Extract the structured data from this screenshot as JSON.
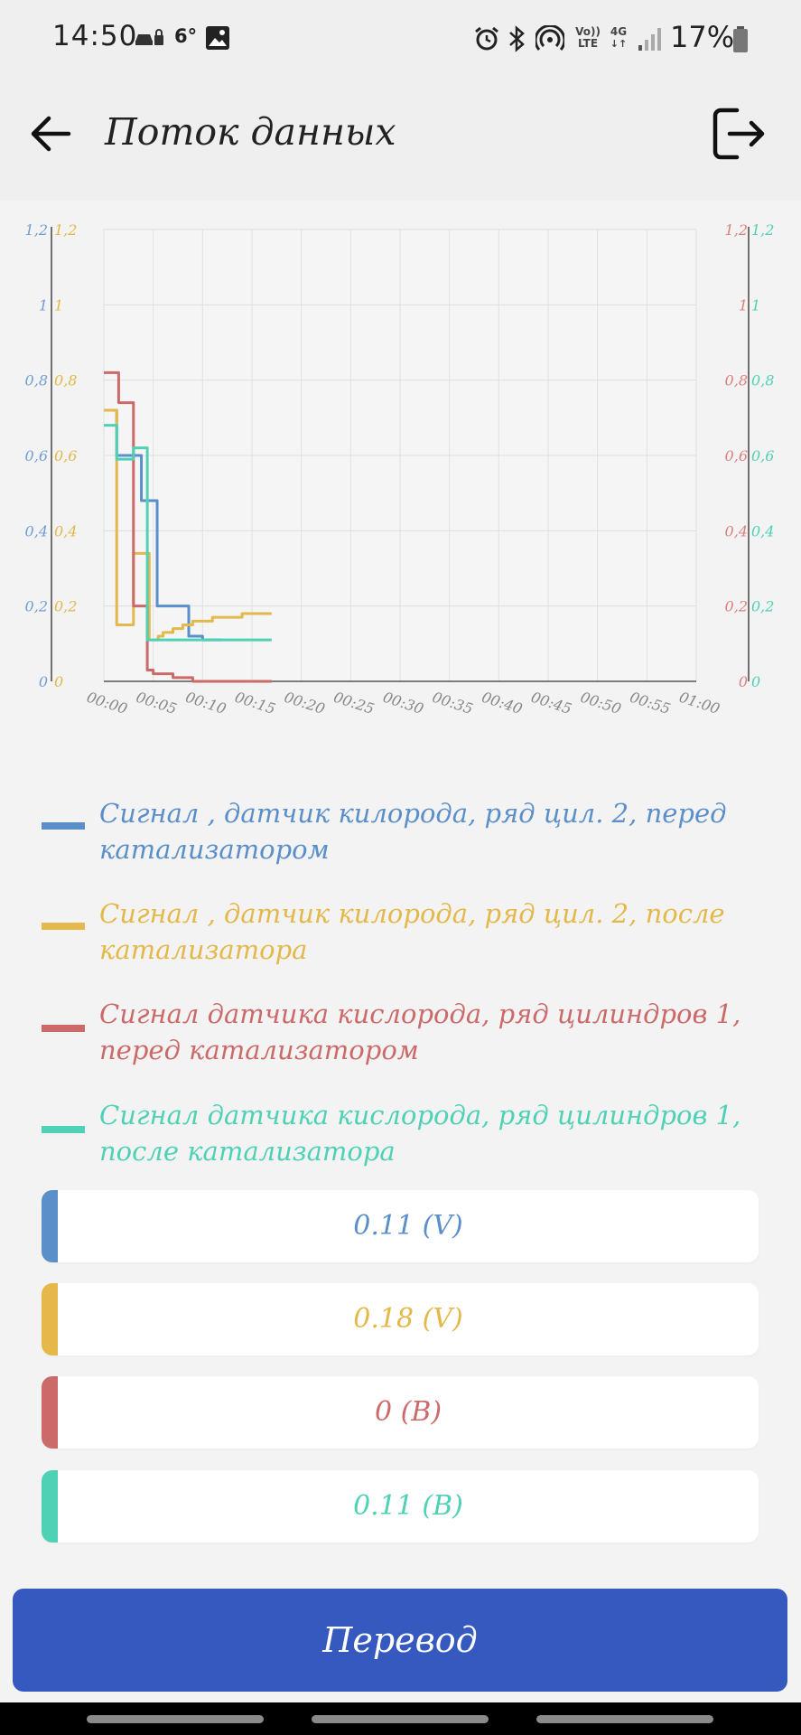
{
  "status_bar": {
    "time": "14:50",
    "temperature": "6°",
    "network_top": "Vo))",
    "network_bottom": "LTE",
    "network_type": "4G",
    "battery": "17%",
    "icons": [
      "car-lock-icon",
      "image-icon",
      "alarm-icon",
      "bluetooth-icon",
      "hotspot-icon",
      "signal-icon",
      "battery-icon"
    ]
  },
  "header": {
    "title": "Поток данных",
    "back_icon": "arrow-left-icon",
    "exit_icon": "exit-icon"
  },
  "chart_data": {
    "type": "line",
    "x_ticks": [
      "00:00",
      "00:05",
      "00:10",
      "00:15",
      "00:20",
      "00:25",
      "00:30",
      "00:35",
      "00:40",
      "00:45",
      "00:50",
      "00:55",
      "01:00"
    ],
    "y_ticks": [
      "0",
      "0,2",
      "0,4",
      "0,6",
      "0,8",
      "1",
      "1,2"
    ],
    "ylim": [
      0,
      1.2
    ],
    "xlim": [
      0,
      60
    ],
    "grid": true,
    "series": [
      {
        "name": "Сигнал , датчик килорода, ряд цил. 2, перед катализатором",
        "color": "#5b8fc9",
        "x": [
          0,
          1,
          1.3,
          3,
          3.8,
          4.4,
          5.4,
          7,
          8.6,
          10,
          12
        ],
        "y": [
          0.72,
          0.72,
          0.6,
          0.6,
          0.48,
          0.48,
          0.2,
          0.2,
          0.12,
          0.11,
          0.11
        ]
      },
      {
        "name": "Сигнал , датчик килорода, ряд цил. 2, после катализатора",
        "color": "#e4b84a",
        "x": [
          0,
          1,
          1.3,
          2.5,
          3,
          4,
          4.6,
          5,
          5.5,
          6,
          7,
          8,
          9,
          10,
          11,
          12,
          13,
          14,
          15,
          17
        ],
        "y": [
          0.72,
          0.72,
          0.15,
          0.15,
          0.34,
          0.34,
          0.11,
          0.11,
          0.12,
          0.13,
          0.14,
          0.15,
          0.16,
          0.16,
          0.17,
          0.17,
          0.17,
          0.18,
          0.18,
          0.18
        ]
      },
      {
        "name": "Сигнал датчика кислорода, ряд цилиндров 1, перед катализатором",
        "color": "#cc6a6a",
        "x": [
          0,
          1.2,
          1.5,
          2.6,
          3,
          4,
          4.4,
          5,
          6,
          7,
          8,
          9,
          17
        ],
        "y": [
          0.82,
          0.82,
          0.74,
          0.74,
          0.2,
          0.2,
          0.03,
          0.02,
          0.02,
          0.01,
          0.01,
          0,
          0
        ]
      },
      {
        "name": "Сигнал датчика кислорода, ряд цилиндров 1, после катализатора",
        "color": "#4fd1b5",
        "x": [
          0,
          1,
          1.3,
          2.6,
          3,
          4,
          4.4,
          6,
          8,
          17
        ],
        "y": [
          0.68,
          0.68,
          0.59,
          0.59,
          0.62,
          0.62,
          0.11,
          0.11,
          0.11,
          0.11
        ]
      }
    ]
  },
  "legend": [
    {
      "label": "Сигнал , датчик килорода, ряд цил. 2, перед катализатором",
      "color": "#5b8fc9"
    },
    {
      "label": "Сигнал , датчик килорода, ряд цил. 2, после катализатора",
      "color": "#e4b84a"
    },
    {
      "label": "Сигнал датчика кислорода, ряд цилиндров 1, перед катализатором",
      "color": "#cc6a6a"
    },
    {
      "label": "Сигнал датчика кислорода, ряд цилиндров 1, после катализатора",
      "color": "#4fd1b5"
    }
  ],
  "values": [
    {
      "value": "0.11 (V)",
      "color": "#5b8fc9"
    },
    {
      "value": "0.18 (V)",
      "color": "#e4b84a"
    },
    {
      "value": "0 (В)",
      "color": "#cc6a6a"
    },
    {
      "value": "0.11 (В)",
      "color": "#4fd1b5"
    }
  ],
  "convert_button": {
    "label": "Перевод"
  },
  "colors": {
    "accent": "#3659c0",
    "background": "#f3f3f3"
  }
}
